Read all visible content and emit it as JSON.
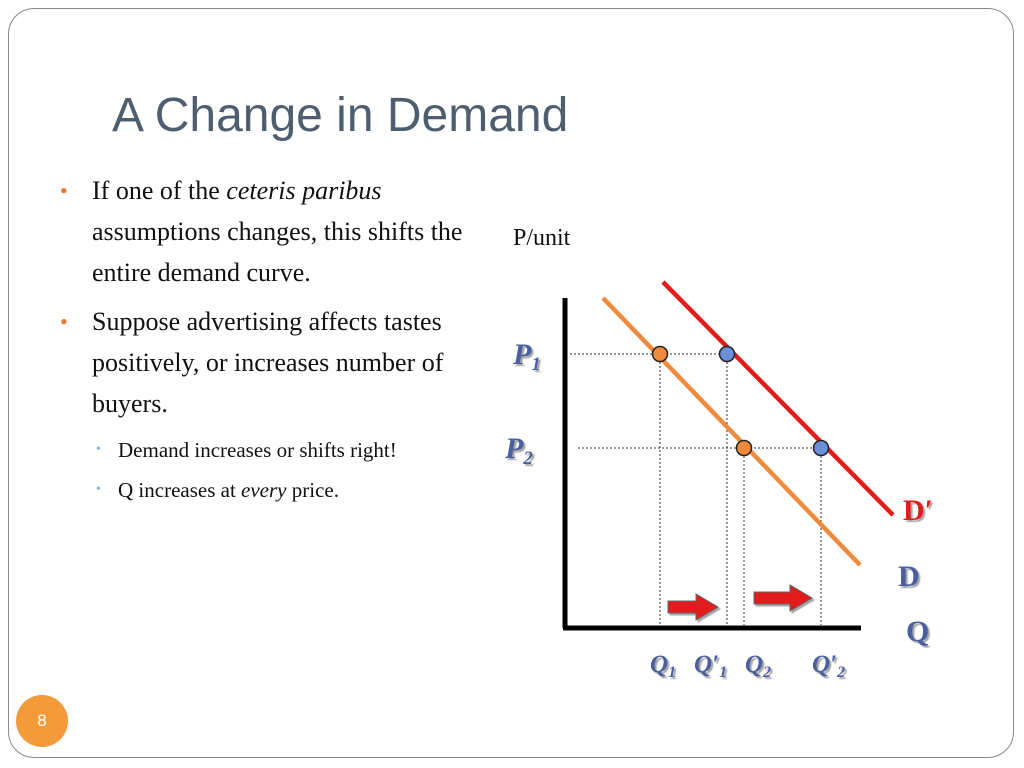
{
  "slide": {
    "title": "A Change in Demand",
    "number": "8"
  },
  "bullets": {
    "b1": {
      "pre": "If one of the ",
      "em": "ceteris paribus",
      "post": " assumptions changes, this shifts the entire demand curve."
    },
    "b2": {
      "text": "Suppose advertising affects tastes positively, or increases number of buyers."
    },
    "sub1": {
      "text": "Demand increases or shifts right!"
    },
    "sub2": {
      "pre": "Q increases at ",
      "em": "every",
      "post": " price."
    }
  },
  "diagram": {
    "y_axis_label": "P/unit",
    "x_axis_label": "Q",
    "curve_d_label": "D",
    "curve_dprime_label": "D′",
    "price_levels": [
      {
        "base": "P",
        "sub": "1"
      },
      {
        "base": "P",
        "sub": "2"
      }
    ],
    "quantity_labels": [
      {
        "base": "Q",
        "prime": "",
        "sub": "1"
      },
      {
        "base": "Q",
        "prime": "′",
        "sub": "1"
      },
      {
        "base": "Q",
        "prime": "",
        "sub": "2"
      },
      {
        "base": "Q",
        "prime": "′",
        "sub": "2"
      }
    ],
    "colors": {
      "curve_d": "#f08a3c",
      "curve_dprime": "#e21b1b",
      "point_d": "#f08a3c",
      "point_dprime": "#6a8fd8",
      "shift_arrow": "#e21b1b",
      "axis_label_blue": "#4a5f9e",
      "guides": "#333333"
    }
  }
}
